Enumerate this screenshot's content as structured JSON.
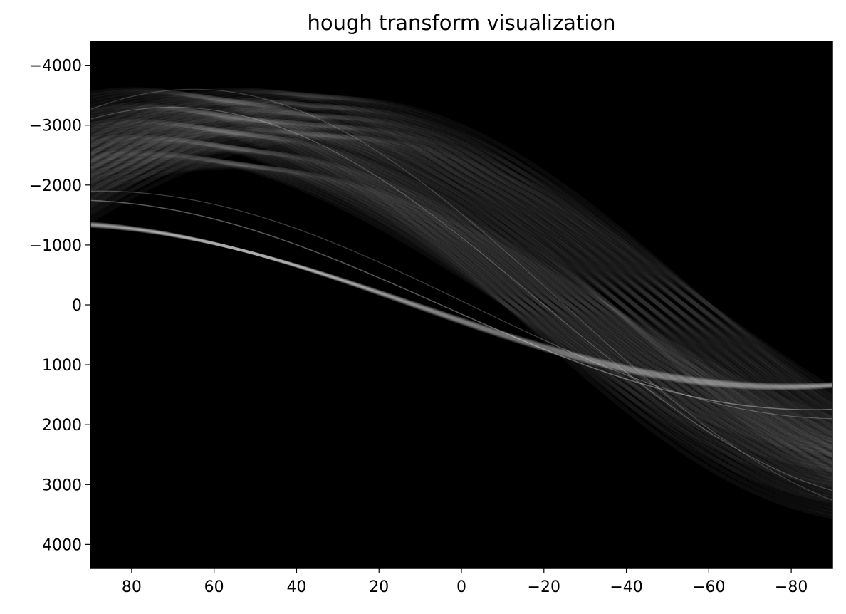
{
  "chart_data": {
    "type": "heatmap",
    "title": "hough transform visualization",
    "xlabel": "",
    "ylabel": "",
    "xlim": [
      90,
      -90
    ],
    "ylim": [
      4400,
      -4400
    ],
    "x_ticks": [
      80,
      60,
      40,
      20,
      0,
      -20,
      -40,
      -60,
      -80
    ],
    "x_tick_labels": [
      "80",
      "60",
      "40",
      "20",
      "0",
      "−20",
      "−40",
      "−60",
      "−80"
    ],
    "y_ticks": [
      -4000,
      -3000,
      -2000,
      -1000,
      0,
      1000,
      2000,
      3000,
      4000
    ],
    "y_tick_labels": [
      "−4000",
      "−3000",
      "−2000",
      "−1000",
      "0",
      "1000",
      "2000",
      "3000",
      "4000"
    ],
    "colormap": "gray",
    "background": "#000000",
    "grid": false,
    "bands": [
      {
        "start": [
          90,
          -1300
        ],
        "mid": [
          0,
          -300
        ],
        "end": [
          -90,
          1250
        ],
        "intensity": 0.9
      },
      {
        "start": [
          90,
          -2500
        ],
        "mid": [
          10,
          -200
        ],
        "end": [
          -90,
          2200
        ],
        "intensity": 0.55
      },
      {
        "start": [
          90,
          -3200
        ],
        "mid": [
          20,
          -400
        ],
        "end": [
          -90,
          3400
        ],
        "intensity": 0.6
      }
    ]
  }
}
